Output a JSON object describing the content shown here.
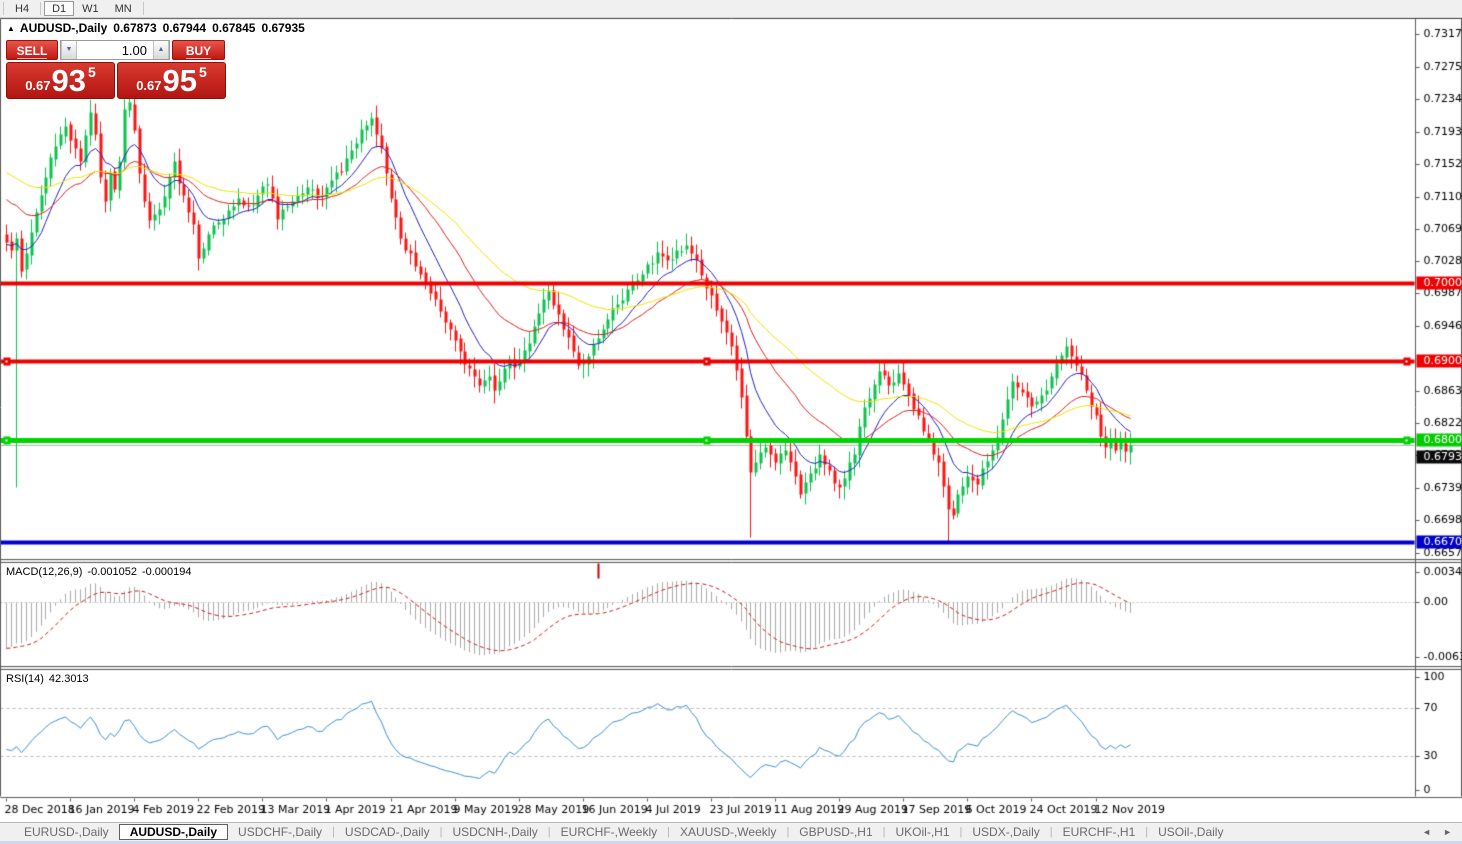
{
  "toolbar": {
    "timeframes": [
      "H4",
      "D1",
      "W1",
      "MN"
    ],
    "active": "D1"
  },
  "icons": {
    "title_marker": "▲",
    "vol_down": "▼",
    "vol_up": "▲",
    "scroll_left": "◄",
    "scroll_right": "►"
  },
  "chart": {
    "title": "AUDUSD-,Daily",
    "open": "0.67873",
    "high": "0.67944",
    "low": "0.67845",
    "close": "0.67935"
  },
  "trade_panel": {
    "sell_label": "SELL",
    "buy_label": "BUY",
    "volume": "1.00",
    "sell_price": {
      "prefix": "0.67",
      "big": "93",
      "pips": "5"
    },
    "buy_price": {
      "prefix": "0.67",
      "big": "95",
      "pips": "5"
    }
  },
  "price_axis": {
    "ticks": [
      "0.73170",
      "0.72750",
      "0.72340",
      "0.71930",
      "0.71520",
      "0.71100",
      "0.70690",
      "0.70280",
      "0.69870",
      "0.69460",
      "0.68630",
      "0.68220",
      "0.67810",
      "0.67390",
      "0.66980",
      "0.66570"
    ],
    "badges": [
      {
        "text": "0.70002",
        "price": 0.70002,
        "bg": "#ee0000",
        "fg": "#ffffff"
      },
      {
        "text": "0.69006",
        "price": 0.69006,
        "bg": "#ee0000",
        "fg": "#ffffff"
      },
      {
        "text": "0.68004",
        "price": 0.68004,
        "bg": "#00cc00",
        "fg": "#ffffff"
      },
      {
        "text": "0.67935",
        "price": 0.67935,
        "bg": "#0a0a0a",
        "fg": "#ffffff",
        "nudge": 12
      },
      {
        "text": "0.66705",
        "price": 0.66705,
        "bg": "#0000cc",
        "fg": "#ffffff"
      }
    ]
  },
  "chart_data": {
    "type": "candlestick",
    "symbol": "AUDUSD",
    "timeframe": "Daily",
    "current_ohlc": {
      "open": 0.67873,
      "high": 0.67944,
      "low": 0.67845,
      "close": 0.67935
    },
    "n_candles": 229,
    "close_anchors": [
      [
        0,
        0.7052
      ],
      [
        1,
        0.7042
      ],
      [
        2,
        0.7058
      ],
      [
        3,
        0.7015
      ],
      [
        4,
        0.7038
      ],
      [
        6,
        0.709
      ],
      [
        8,
        0.7135
      ],
      [
        10,
        0.7175
      ],
      [
        12,
        0.72
      ],
      [
        13,
        0.7182
      ],
      [
        15,
        0.7155
      ],
      [
        17,
        0.7218
      ],
      [
        18,
        0.719
      ],
      [
        19,
        0.7135
      ],
      [
        20,
        0.7105
      ],
      [
        21,
        0.714
      ],
      [
        22,
        0.712
      ],
      [
        23,
        0.7155
      ],
      [
        24,
        0.7222
      ],
      [
        25,
        0.723
      ],
      [
        26,
        0.7195
      ],
      [
        27,
        0.714
      ],
      [
        28,
        0.7105
      ],
      [
        29,
        0.708
      ],
      [
        31,
        0.7095
      ],
      [
        33,
        0.7135
      ],
      [
        34,
        0.7155
      ],
      [
        36,
        0.7112
      ],
      [
        38,
        0.7075
      ],
      [
        39,
        0.7032
      ],
      [
        41,
        0.7062
      ],
      [
        44,
        0.7082
      ],
      [
        47,
        0.7108
      ],
      [
        49,
        0.7098
      ],
      [
        51,
        0.7112
      ],
      [
        53,
        0.7126
      ],
      [
        55,
        0.7082
      ],
      [
        57,
        0.7098
      ],
      [
        59,
        0.7112
      ],
      [
        61,
        0.7122
      ],
      [
        63,
        0.711
      ],
      [
        65,
        0.7122
      ],
      [
        68,
        0.7142
      ],
      [
        70,
        0.717
      ],
      [
        72,
        0.7196
      ],
      [
        74,
        0.721
      ],
      [
        75,
        0.719
      ],
      [
        76,
        0.7172
      ],
      [
        77,
        0.714
      ],
      [
        78,
        0.7108
      ],
      [
        80,
        0.7058
      ],
      [
        82,
        0.7038
      ],
      [
        84,
        0.7012
      ],
      [
        86,
        0.6988
      ],
      [
        88,
        0.6964
      ],
      [
        90,
        0.6942
      ],
      [
        92,
        0.6914
      ],
      [
        94,
        0.6892
      ],
      [
        96,
        0.687
      ],
      [
        98,
        0.6882
      ],
      [
        99,
        0.6864
      ],
      [
        100,
        0.6876
      ],
      [
        101,
        0.6892
      ],
      [
        102,
        0.6904
      ],
      [
        103,
        0.6893
      ],
      [
        104,
        0.6902
      ],
      [
        106,
        0.6924
      ],
      [
        108,
        0.6962
      ],
      [
        109,
        0.698
      ],
      [
        110,
        0.699
      ],
      [
        111,
        0.6972
      ],
      [
        113,
        0.6942
      ],
      [
        115,
        0.6914
      ],
      [
        116,
        0.6896
      ],
      [
        118,
        0.6907
      ],
      [
        120,
        0.693
      ],
      [
        122,
        0.6954
      ],
      [
        124,
        0.6974
      ],
      [
        126,
        0.6992
      ],
      [
        128,
        0.7004
      ],
      [
        130,
        0.7024
      ],
      [
        132,
        0.704
      ],
      [
        134,
        0.703
      ],
      [
        136,
        0.7042
      ],
      [
        138,
        0.7048
      ],
      [
        139,
        0.7038
      ],
      [
        141,
        0.701
      ],
      [
        143,
        0.6985
      ],
      [
        145,
        0.6952
      ],
      [
        147,
        0.692
      ],
      [
        148,
        0.689
      ],
      [
        149,
        0.6855
      ],
      [
        150,
        0.6805
      ],
      [
        151,
        0.676
      ],
      [
        152,
        0.6772
      ],
      [
        154,
        0.6792
      ],
      [
        156,
        0.6772
      ],
      [
        158,
        0.6788
      ],
      [
        160,
        0.6755
      ],
      [
        161,
        0.6732
      ],
      [
        163,
        0.6758
      ],
      [
        165,
        0.6782
      ],
      [
        167,
        0.6762
      ],
      [
        169,
        0.674
      ],
      [
        170,
        0.6752
      ],
      [
        172,
        0.6782
      ],
      [
        174,
        0.6842
      ],
      [
        176,
        0.6872
      ],
      [
        177,
        0.6888
      ],
      [
        179,
        0.687
      ],
      [
        181,
        0.6886
      ],
      [
        183,
        0.6858
      ],
      [
        185,
        0.6832
      ],
      [
        187,
        0.6802
      ],
      [
        189,
        0.6772
      ],
      [
        190,
        0.6742
      ],
      [
        191,
        0.6712
      ],
      [
        192,
        0.6705
      ],
      [
        193,
        0.6732
      ],
      [
        195,
        0.6754
      ],
      [
        197,
        0.6744
      ],
      [
        199,
        0.6774
      ],
      [
        201,
        0.6804
      ],
      [
        203,
        0.6852
      ],
      [
        204,
        0.6876
      ],
      [
        206,
        0.6862
      ],
      [
        208,
        0.6844
      ],
      [
        210,
        0.6858
      ],
      [
        212,
        0.6882
      ],
      [
        214,
        0.6908
      ],
      [
        215,
        0.692
      ],
      [
        217,
        0.6896
      ],
      [
        219,
        0.6864
      ],
      [
        221,
        0.6832
      ],
      [
        222,
        0.6806
      ],
      [
        223,
        0.6792
      ],
      [
        224,
        0.6802
      ],
      [
        225,
        0.6788
      ],
      [
        226,
        0.6798
      ],
      [
        227,
        0.6786
      ],
      [
        228,
        0.67935
      ]
    ],
    "wick_overrides": [
      {
        "i": 2,
        "low": 0.674
      },
      {
        "i": 25,
        "high": 0.7242
      },
      {
        "i": 74,
        "high": 0.7218
      },
      {
        "i": 139,
        "high": 0.706
      },
      {
        "i": 151,
        "low": 0.6677
      },
      {
        "i": 191,
        "low": 0.66705
      },
      {
        "i": 215,
        "high": 0.6932
      }
    ],
    "x_labels": [
      "28 Dec 2018",
      "16 Jan 2019",
      "4 Feb 2019",
      "22 Feb 2019",
      "13 Mar 2019",
      "1 Apr 2019",
      "21 Apr 2019",
      "9 May 2019",
      "28 May 2019",
      "16 Jun 2019",
      "4 Jul 2019",
      "23 Jul 2019",
      "11 Aug 2019",
      "29 Aug 2019",
      "17 Sep 2019",
      "6 Oct 2019",
      "24 Oct 2019",
      "12 Nov 2019"
    ],
    "x_label_step": 13,
    "hlines": [
      {
        "price": 0.70002,
        "color": "#ee0000",
        "thickness": 4,
        "selected": false
      },
      {
        "price": 0.69006,
        "color": "#ee0000",
        "thickness": 4,
        "selected": true
      },
      {
        "price": 0.68004,
        "color": "#00d400",
        "thickness": 5,
        "selected": true
      },
      {
        "price": 0.66705,
        "color": "#0000cc",
        "thickness": 4,
        "selected": false
      }
    ],
    "bid_line": {
      "price": 0.67935,
      "color": "#b8b8b8"
    },
    "moving_averages": [
      {
        "type": "ema",
        "period": 10,
        "color": "#2222bd",
        "seed": 0.705
      },
      {
        "type": "ema",
        "period": 25,
        "color": "#d92020",
        "seed": 0.7112
      },
      {
        "type": "ema",
        "period": 50,
        "color": "#f2e400",
        "seed": 0.7145
      }
    ],
    "candle_colors": {
      "bull": "#0cc24e",
      "bear": "#fb1414"
    }
  },
  "indicators": {
    "macd": {
      "name": "MACD(12,26,9)",
      "value_main": "-0.001052",
      "value_signal": "-0.000194",
      "axis_labels": [
        "0.00349",
        "0.00",
        "-0.00637"
      ],
      "hist_color": "#aaaaaa",
      "signal_color": "#cc2020"
    },
    "rsi": {
      "name": "RSI(14)",
      "value": "42.3013",
      "axis_labels": [
        "100",
        "70",
        "30",
        "0"
      ],
      "levels": [
        70,
        30
      ],
      "line_color": "#3f8fd2"
    }
  },
  "tabs": {
    "items": [
      "EURUSD-,Daily",
      "AUDUSD-,Daily",
      "USDCHF-,Daily",
      "USDCAD-,Daily",
      "USDCNH-,Daily",
      "EURCHF-,Weekly",
      "XAUUSD-,Weekly",
      "GBPUSD-,H1",
      "UKOil-,H1",
      "USDX-,Daily",
      "EURCHF-,H1",
      "USOil-,Daily"
    ],
    "active": "AUDUSD-,Daily"
  }
}
